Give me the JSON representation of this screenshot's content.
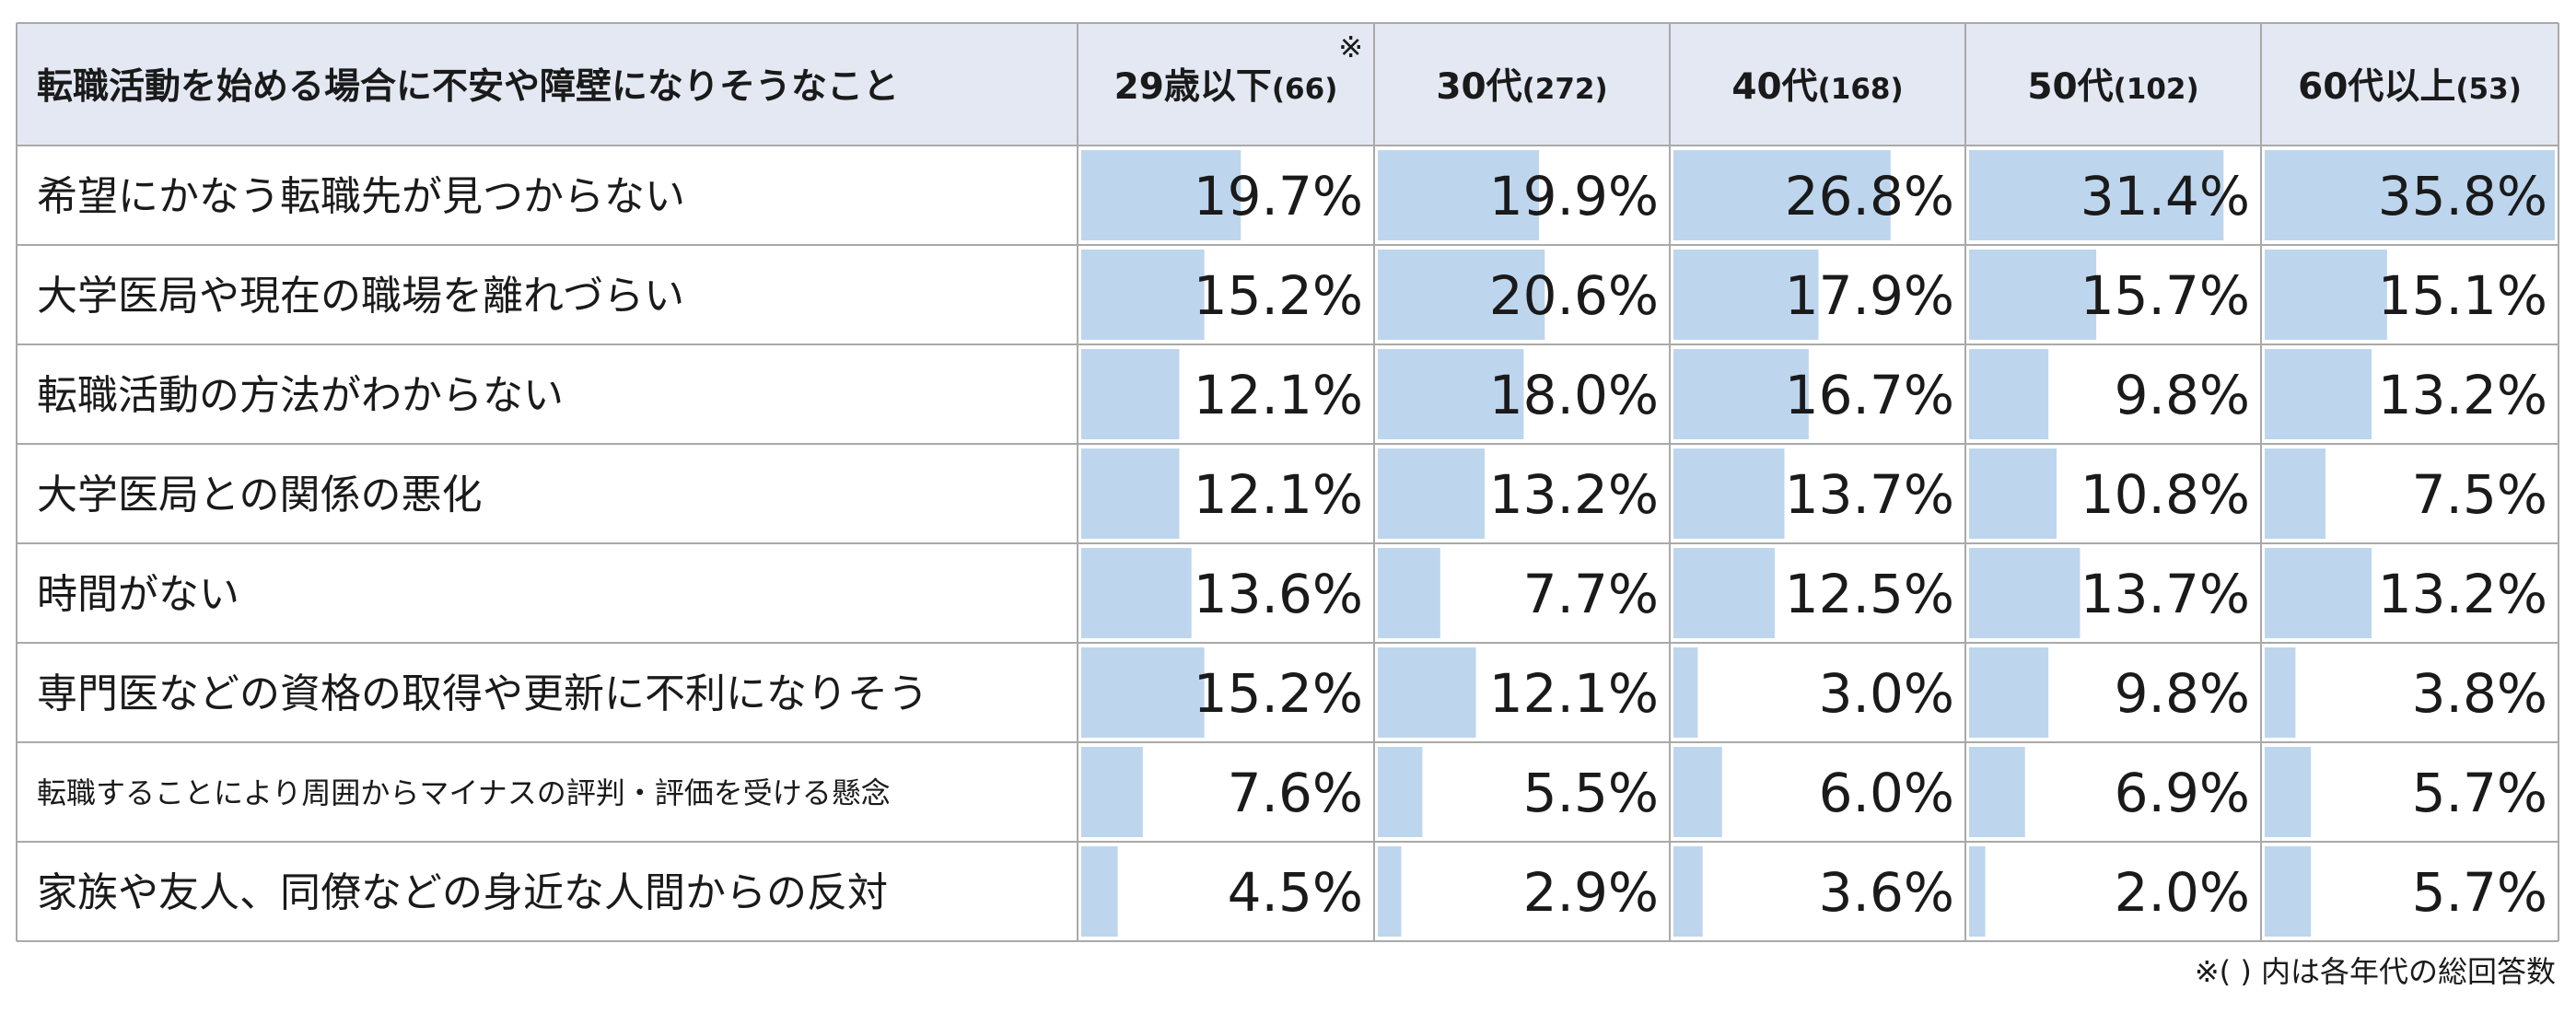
{
  "chart_data": {
    "type": "table",
    "header": {
      "label": "転職活動を始める場合に不安や障壁になりそうなこと",
      "columns": [
        {
          "name": "29歳以下",
          "count": "(66)",
          "mark": "※"
        },
        {
          "name": "30代",
          "count": "(272)"
        },
        {
          "name": "40代",
          "count": "(168)"
        },
        {
          "name": "50代",
          "count": "(102)"
        },
        {
          "name": "60代以上",
          "count": "(53)"
        }
      ]
    },
    "rows": [
      {
        "label": "希望にかなう転職先が見つからない",
        "values": [
          19.7,
          19.9,
          26.8,
          31.4,
          35.8
        ],
        "display": [
          "19.7%",
          "19.9%",
          "26.8%",
          "31.4%",
          "35.8%"
        ]
      },
      {
        "label": "大学医局や現在の職場を離れづらい",
        "values": [
          15.2,
          20.6,
          17.9,
          15.7,
          15.1
        ],
        "display": [
          "15.2%",
          "20.6%",
          "17.9%",
          "15.7%",
          "15.1%"
        ]
      },
      {
        "label": "転職活動の方法がわからない",
        "values": [
          12.1,
          18.0,
          16.7,
          9.8,
          13.2
        ],
        "display": [
          "12.1%",
          "18.0%",
          "16.7%",
          "9.8%",
          "13.2%"
        ]
      },
      {
        "label": "大学医局との関係の悪化",
        "values": [
          12.1,
          13.2,
          13.7,
          10.8,
          7.5
        ],
        "display": [
          "12.1%",
          "13.2%",
          "13.7%",
          "10.8%",
          "7.5%"
        ]
      },
      {
        "label": "時間がない",
        "values": [
          13.6,
          7.7,
          12.5,
          13.7,
          13.2
        ],
        "display": [
          "13.6%",
          "7.7%",
          "12.5%",
          "13.7%",
          "13.2%"
        ]
      },
      {
        "label": "専門医などの資格の取得や更新に不利になりそう",
        "values": [
          15.2,
          12.1,
          3.0,
          9.8,
          3.8
        ],
        "display": [
          "15.2%",
          "12.1%",
          "3.0%",
          "9.8%",
          "3.8%"
        ]
      },
      {
        "label": "転職することにより周囲からマイナスの評判・評価を受ける懸念",
        "values": [
          7.6,
          5.5,
          6.0,
          6.9,
          5.7
        ],
        "display": [
          "7.6%",
          "5.5%",
          "6.0%",
          "6.9%",
          "5.7%"
        ],
        "small": true
      },
      {
        "label": "家族や友人、同僚などの身近な人間からの反対",
        "values": [
          4.5,
          2.9,
          3.6,
          2.0,
          5.7
        ],
        "display": [
          "4.5%",
          "2.9%",
          "3.6%",
          "2.0%",
          "5.7%"
        ]
      }
    ],
    "scale_max": 35.8,
    "note": "※( ) 内は各年代の総回答数"
  },
  "colors": {
    "header_bg": "#e3e8f3",
    "bar": "#bdd6ee",
    "grid": "#a9a9a9",
    "text": "#1a1a1a"
  }
}
